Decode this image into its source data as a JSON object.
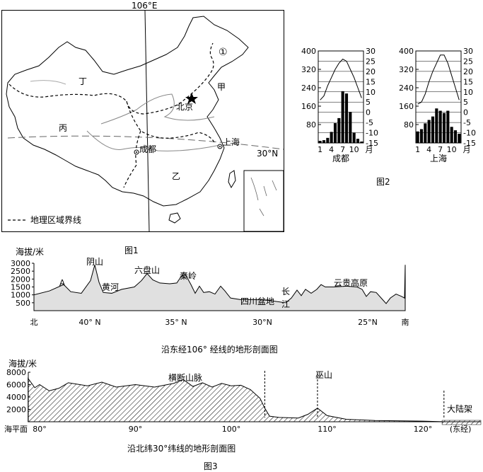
{
  "map": {
    "meridian_label": "106°E",
    "parallel_label": "30°N",
    "region_labels": [
      "丁",
      "甲",
      "丙",
      "乙"
    ],
    "marker_one": "①",
    "cities": [
      "北京",
      "成都",
      "上海"
    ],
    "legend_text": "地理区域界线"
  },
  "figure1_caption": "图1",
  "figure2_caption": "图2",
  "figure3_caption": "图3",
  "climate_charts": [
    {
      "city": "成都",
      "precip_axis": [
        400,
        320,
        240,
        160,
        80,
        0
      ],
      "temp_axis": [
        30,
        25,
        20,
        15,
        10,
        5,
        0,
        -5,
        -10,
        -15
      ],
      "months": [
        "1",
        "4",
        "7",
        "10",
        "月"
      ],
      "temperature_c": [
        6,
        8,
        13,
        17,
        21,
        24,
        26,
        25,
        21,
        17,
        12,
        7
      ],
      "precipitation_mm": [
        9,
        12,
        22,
        48,
        86,
        108,
        225,
        215,
        135,
        45,
        18,
        6
      ]
    },
    {
      "city": "上海",
      "precip_axis": [
        400,
        320,
        240,
        160,
        80,
        0
      ],
      "temp_axis": [
        30,
        25,
        20,
        15,
        10,
        5,
        0,
        -5,
        -10,
        -15
      ],
      "months": [
        "1",
        "4",
        "7",
        "10",
        "月"
      ],
      "temperature_c": [
        4,
        5,
        9,
        15,
        20,
        24,
        28,
        28,
        24,
        18,
        12,
        6
      ],
      "precipitation_mm": [
        50,
        60,
        85,
        100,
        115,
        150,
        140,
        130,
        140,
        70,
        55,
        40
      ]
    }
  ],
  "profile1": {
    "ylabel": "海拔/米",
    "y_ticks": [
      3000,
      2500,
      2000,
      1500,
      1000,
      500
    ],
    "x_ticks": [
      "北",
      "40° N",
      "35° N",
      "30°N",
      "25°N",
      "南"
    ],
    "labels": [
      "A",
      "阴山",
      "黄河",
      "六盘山",
      "秦岭",
      "四川盆地",
      "长",
      "江",
      "云贵高原"
    ],
    "title": "沿东经106° 经线的地形剖面图"
  },
  "profile2": {
    "ylabel": "海拔/米",
    "y_ticks": [
      8000,
      6000,
      4000,
      2000
    ],
    "sea_level": "海平面",
    "x_ticks": [
      "80°",
      "90°",
      "100°",
      "110°",
      "120°"
    ],
    "x_unit": "(东经)",
    "labels": [
      "横断山脉",
      "巫山",
      "大陆架"
    ],
    "title": "沿北纬30°纬线的地形剖面图"
  }
}
